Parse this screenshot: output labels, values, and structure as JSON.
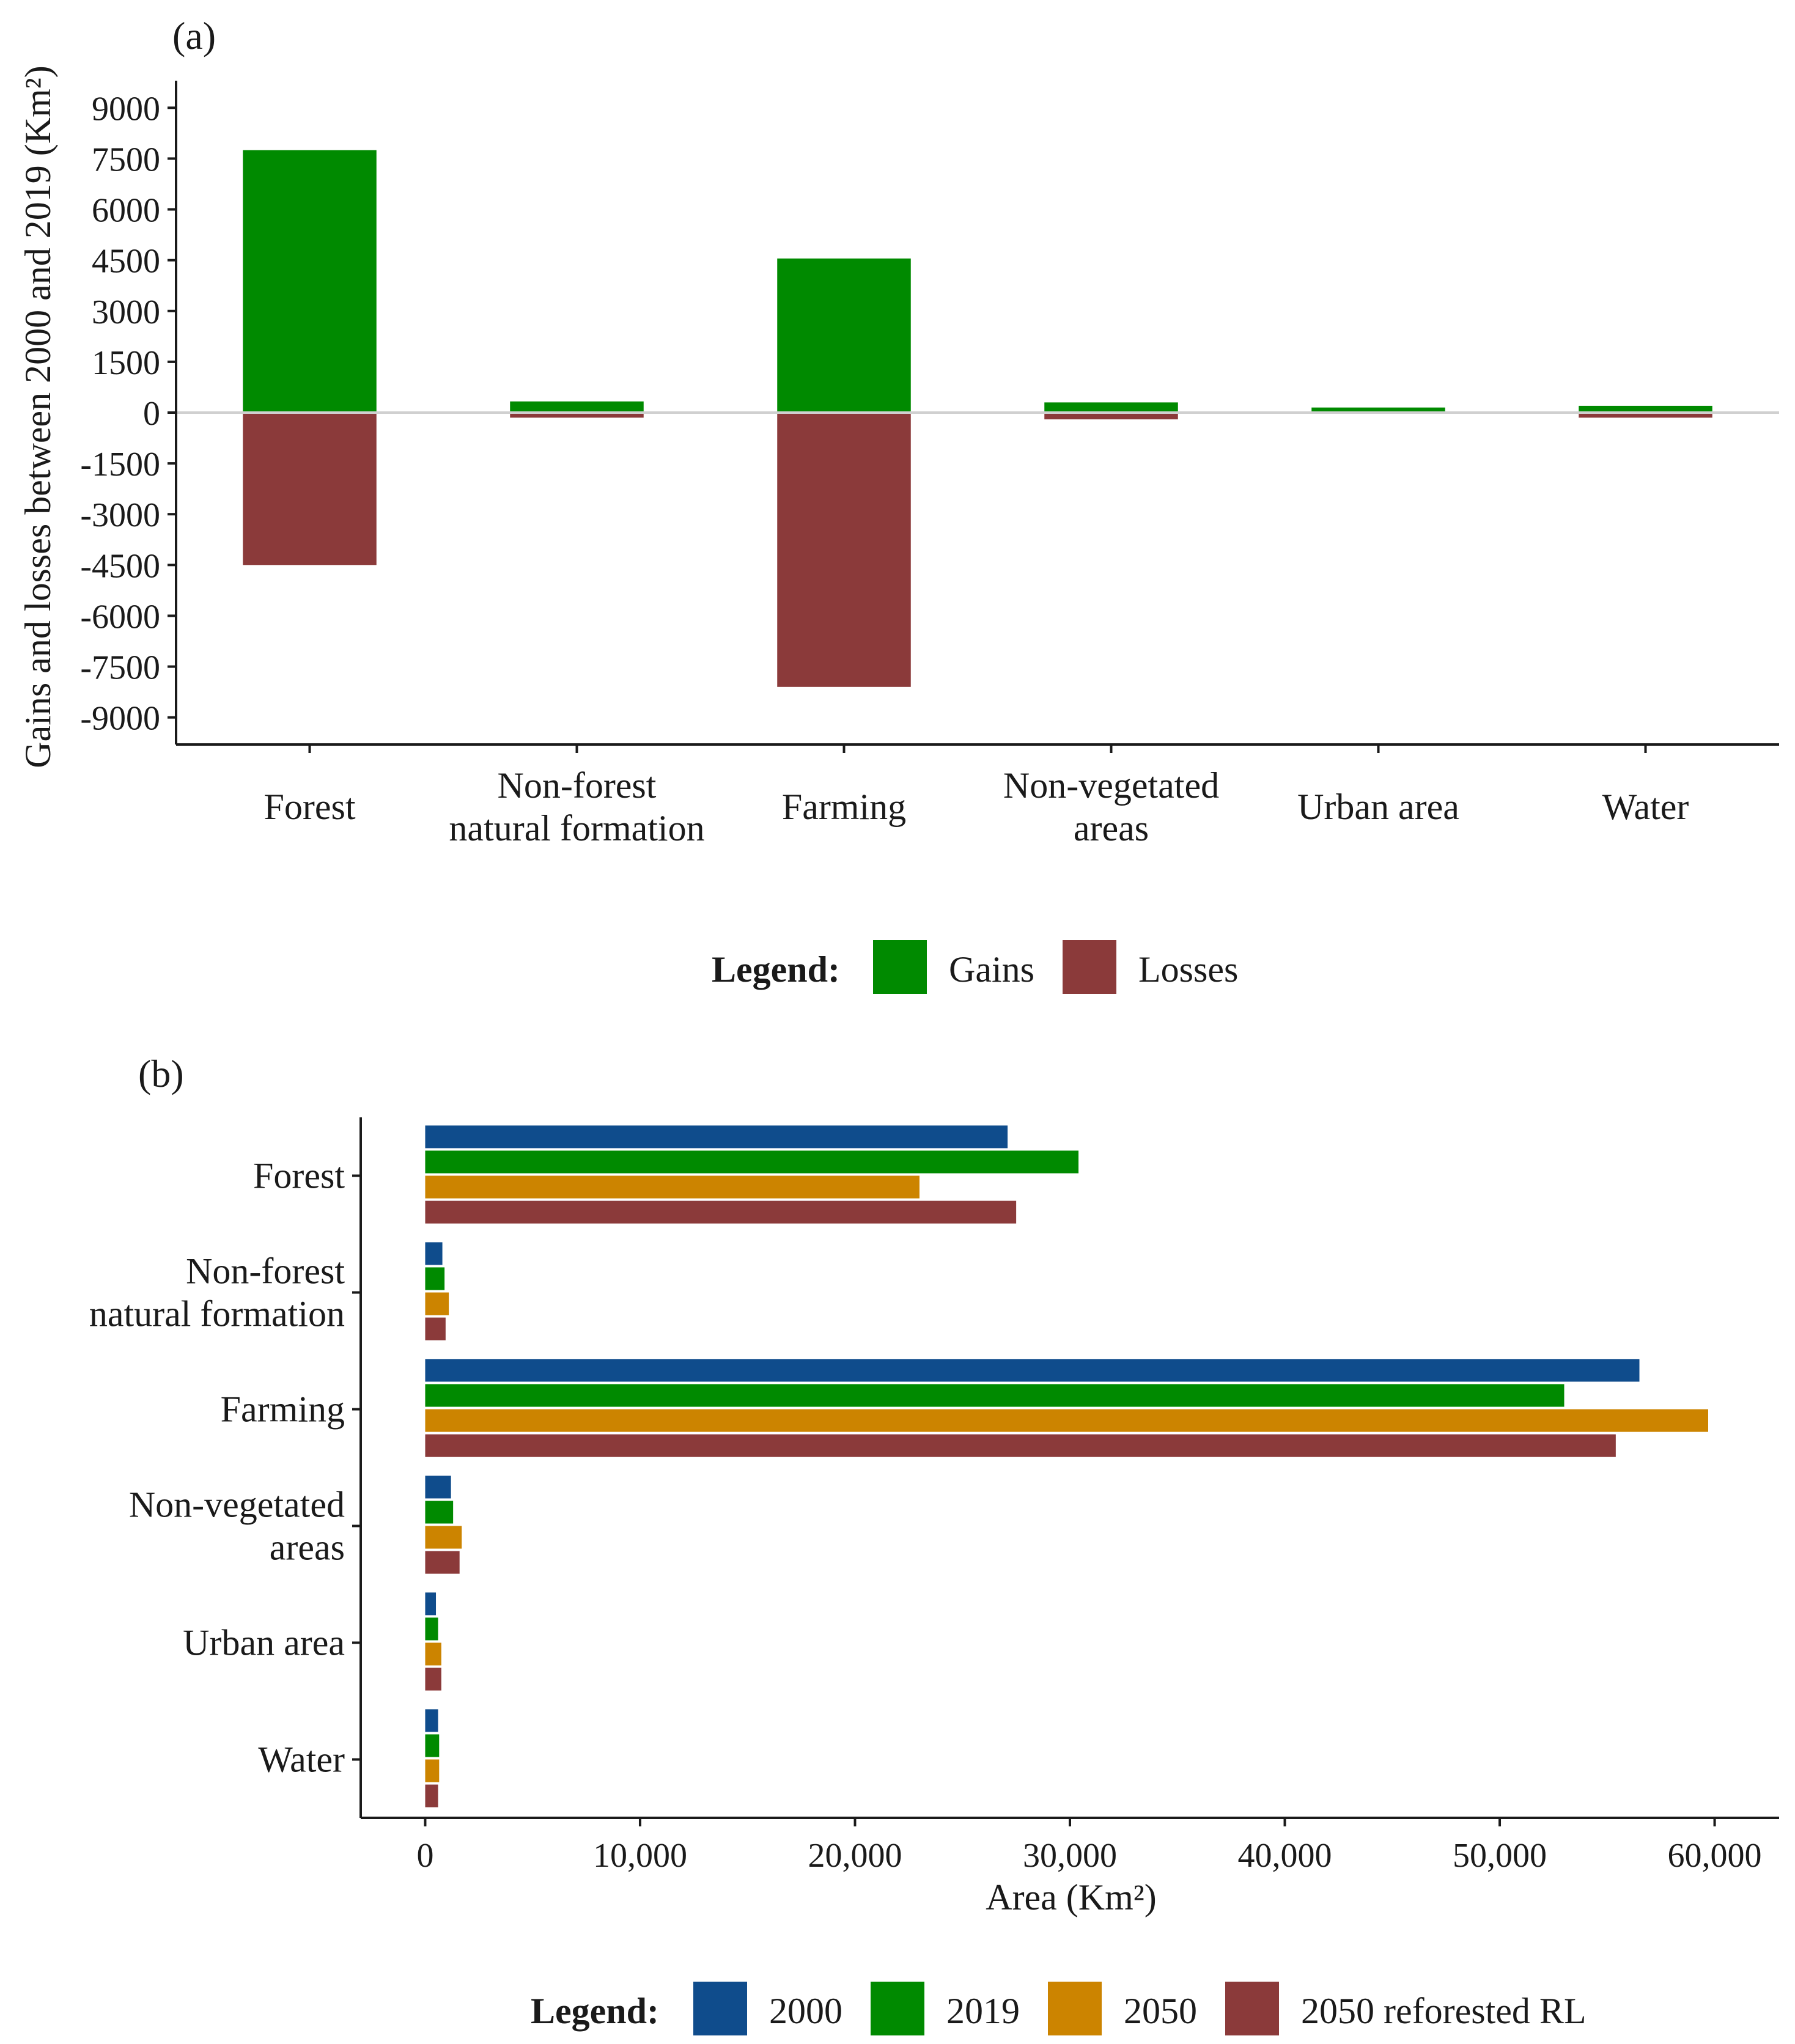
{
  "chart_data": [
    {
      "panel": "(a)",
      "type": "bar",
      "orientation": "vertical",
      "ylabel": "Gains and losses between 2000 and 2019 (Km²)",
      "xlabel": "",
      "ylim": [
        -9800,
        9800
      ],
      "yticks": [
        9000,
        7500,
        6000,
        4500,
        3000,
        1500,
        0,
        -1500,
        -3000,
        -4500,
        -6000,
        -7500,
        -9000
      ],
      "yticklabels": [
        "9000",
        "7500",
        "6000",
        "4500",
        "3000",
        "1500",
        "0",
        "-1500",
        "-3000",
        "-4500",
        "-6000",
        "-7500",
        "-9000"
      ],
      "categories": [
        "Forest",
        "Non-forest natural formation",
        "Farming",
        "Non-vegetated areas",
        "Urban area",
        "Water"
      ],
      "category_lines": [
        [
          "Forest"
        ],
        [
          "Non-forest",
          "natural formation"
        ],
        [
          "Farming"
        ],
        [
          "Non-vegetated",
          "areas"
        ],
        [
          "Urban area"
        ],
        [
          "Water"
        ]
      ],
      "series": [
        {
          "name": "Gains",
          "color": "#008a00",
          "values": [
            7750,
            330,
            4550,
            300,
            150,
            200
          ]
        },
        {
          "name": "Losses",
          "color": "#8b3a3a",
          "values": [
            -4500,
            -150,
            -8100,
            -200,
            0,
            -150
          ]
        }
      ],
      "zero_line": true,
      "grid": false,
      "legend": {
        "title": "Legend:",
        "placement": "bottom"
      }
    },
    {
      "panel": "(b)",
      "type": "bar",
      "orientation": "horizontal",
      "xlabel": "Area (Km²)",
      "ylabel": "",
      "xlim": [
        -3000,
        63000
      ],
      "xticks": [
        0,
        10000,
        20000,
        30000,
        40000,
        50000,
        60000
      ],
      "xticklabels": [
        "0",
        "10,000",
        "20,000",
        "30,000",
        "40,000",
        "50,000",
        "60,000"
      ],
      "categories": [
        "Forest",
        "Non-forest natural formation",
        "Farming",
        "Non-vegetated areas",
        "Urban area",
        "Water"
      ],
      "category_lines": [
        [
          "Forest"
        ],
        [
          "Non-forest",
          "natural formation"
        ],
        [
          "Farming"
        ],
        [
          "Non-vegetated",
          "areas"
        ],
        [
          "Urban area"
        ],
        [
          "Water"
        ]
      ],
      "series": [
        {
          "name": "2000",
          "color": "#0f4c8c",
          "values": [
            27100,
            800,
            56500,
            1200,
            500,
            600
          ]
        },
        {
          "name": "2019",
          "color": "#008a00",
          "values": [
            30400,
            900,
            53000,
            1300,
            600,
            650
          ]
        },
        {
          "name": "2050",
          "color": "#cc8400",
          "values": [
            23000,
            1100,
            59700,
            1700,
            750,
            650
          ]
        },
        {
          "name": "2050 reforested RL",
          "color": "#8b3a3a",
          "values": [
            27500,
            950,
            55400,
            1600,
            750,
            600
          ]
        }
      ],
      "grid": false,
      "legend": {
        "title": "Legend:",
        "placement": "bottom"
      }
    }
  ]
}
